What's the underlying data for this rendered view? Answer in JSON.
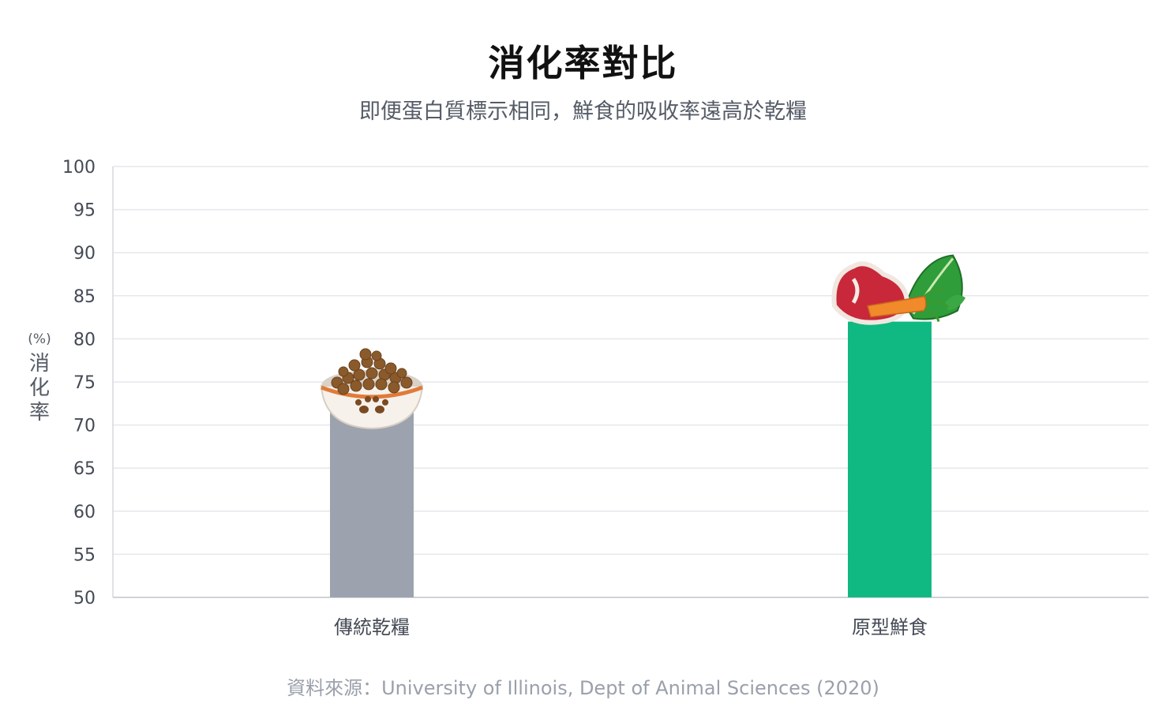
{
  "chart_data": {
    "type": "bar",
    "title": "消化率對比",
    "subtitle": "即便蛋白質標示相同，鮮食的吸收率遠高於乾糧",
    "ylabel": "消化率",
    "yunit": "(%)",
    "ylim": [
      50,
      100
    ],
    "yticks": [
      50,
      55,
      60,
      65,
      70,
      75,
      80,
      85,
      90,
      95,
      100
    ],
    "grid": true,
    "categories": [
      "傳統乾糧",
      "原型鮮食"
    ],
    "values": [
      74,
      82
    ],
    "colors": [
      "#9ca3af",
      "#10b981"
    ],
    "icons": [
      "kibble-bowl-icon",
      "meat-vegetable-icon"
    ],
    "source": "資料來源：University of Illinois, Dept of Animal Sciences (2020)"
  }
}
